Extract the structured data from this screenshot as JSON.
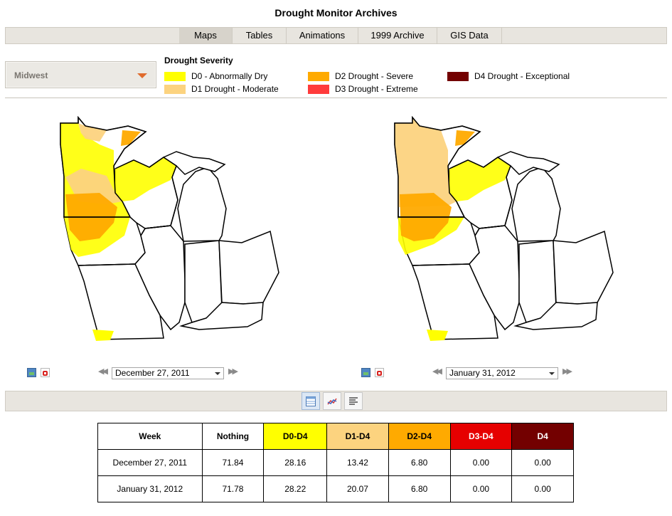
{
  "page": {
    "title": "Drought Monitor Archives"
  },
  "tabs": [
    {
      "label": "Maps",
      "active": true
    },
    {
      "label": "Tables",
      "active": false
    },
    {
      "label": "Animations",
      "active": false
    },
    {
      "label": "1999 Archive",
      "active": false
    },
    {
      "label": "GIS Data",
      "active": false
    }
  ],
  "region_select": {
    "value": "Midwest",
    "icon": "dropdown-triangle-icon"
  },
  "legend": {
    "title": "Drought Severity",
    "items": [
      {
        "label": "D0 - Abnormally Dry",
        "color": "#ffff00"
      },
      {
        "label": "D1 Drought - Moderate",
        "color": "#fcd37f"
      },
      {
        "label": "D2 Drought - Severe",
        "color": "#ffaa00"
      },
      {
        "label": "D3 Drought - Extreme",
        "color": "#e60000"
      },
      {
        "label": "D4 Drought - Exceptional",
        "color": "#730000"
      }
    ]
  },
  "maps": [
    {
      "date": "December 27, 2011",
      "prev_icon": "double-left-arrow-icon",
      "next_icon": "double-right-arrow-icon",
      "image_icon": "image-icon",
      "pdf_icon": "pdf-icon"
    },
    {
      "date": "January 31, 2012",
      "prev_icon": "double-left-arrow-icon",
      "next_icon": "double-right-arrow-icon",
      "image_icon": "image-icon",
      "pdf_icon": "pdf-icon"
    }
  ],
  "view_buttons": [
    {
      "icon": "table-view-icon",
      "active": true
    },
    {
      "icon": "chart-view-icon",
      "active": false
    },
    {
      "icon": "text-view-icon",
      "active": false
    }
  ],
  "table": {
    "headers": [
      "Week",
      "Nothing",
      "D0-D4",
      "D1-D4",
      "D2-D4",
      "D3-D4",
      "D4"
    ],
    "header_colors": [
      "#ffffff",
      "#ffffff",
      "#ffff00",
      "#fcd37f",
      "#ffaa00",
      "#e60000",
      "#730000"
    ],
    "header_text_colors": [
      "#000000",
      "#000000",
      "#000000",
      "#000000",
      "#000000",
      "#ffffff",
      "#ffffff"
    ],
    "rows": [
      [
        "December 27, 2011",
        "71.84",
        "28.16",
        "13.42",
        "6.80",
        "0.00",
        "0.00"
      ],
      [
        "January 31, 2012",
        "71.78",
        "28.22",
        "20.07",
        "6.80",
        "0.00",
        "0.00"
      ]
    ]
  }
}
